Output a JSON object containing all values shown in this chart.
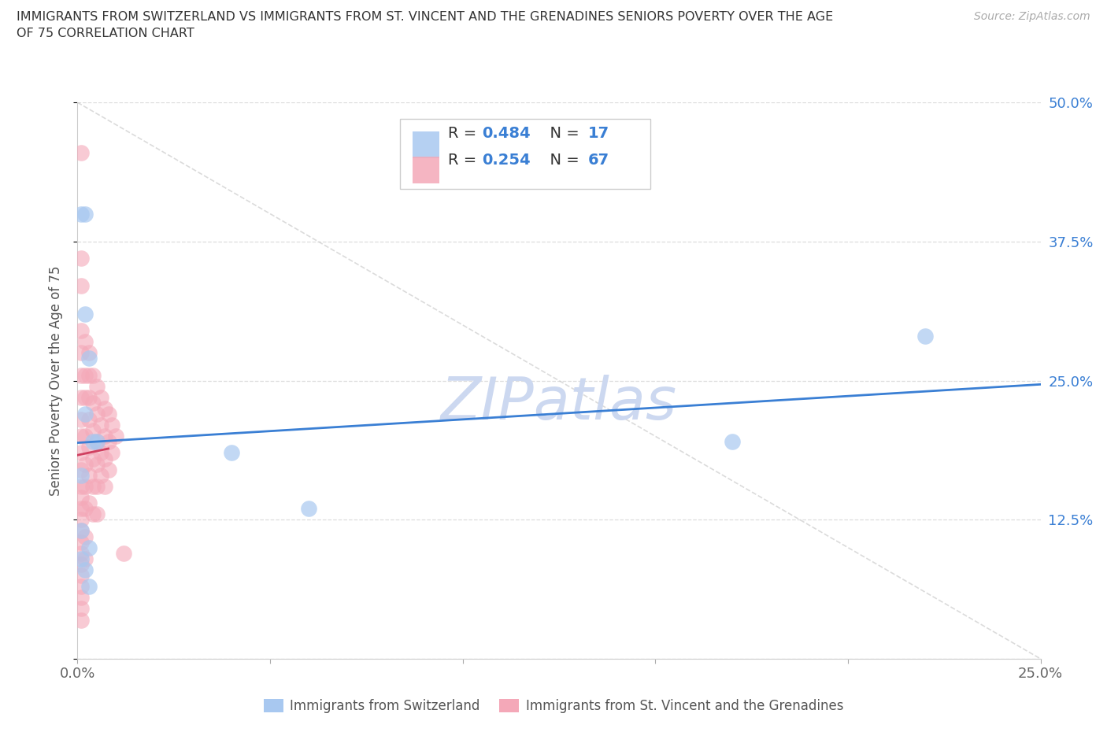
{
  "title_line1": "IMMIGRANTS FROM SWITZERLAND VS IMMIGRANTS FROM ST. VINCENT AND THE GRENADINES SENIORS POVERTY OVER THE AGE",
  "title_line2": "OF 75 CORRELATION CHART",
  "source": "Source: ZipAtlas.com",
  "ylabel": "Seniors Poverty Over the Age of 75",
  "xlim": [
    0.0,
    0.25
  ],
  "ylim": [
    0.0,
    0.5
  ],
  "xticks": [
    0.0,
    0.05,
    0.1,
    0.15,
    0.2,
    0.25
  ],
  "yticks": [
    0.0,
    0.125,
    0.25,
    0.375,
    0.5
  ],
  "xticklabels": [
    "0.0%",
    "",
    "",
    "",
    "",
    "25.0%"
  ],
  "yticklabels_right": [
    "",
    "12.5%",
    "25.0%",
    "37.5%",
    "50.0%"
  ],
  "switzerland_color": "#a8c8f0",
  "stv_color": "#f4a8b8",
  "switzerland_line_color": "#3a7fd4",
  "stv_line_color": "#d04060",
  "stv_diag_color": "#e0b0b8",
  "R_switzerland": 0.484,
  "N_switzerland": 17,
  "R_stv": 0.254,
  "N_stv": 67,
  "watermark": "ZIPatlas",
  "watermark_color": "#ccd8f0",
  "legend_label_switzerland": "Immigrants from Switzerland",
  "legend_label_stv": "Immigrants from St. Vincent and the Grenadines",
  "sw_x": [
    0.001,
    0.002,
    0.001,
    0.002,
    0.003,
    0.002,
    0.004,
    0.005,
    0.003,
    0.001,
    0.001,
    0.002,
    0.003,
    0.17,
    0.22,
    0.04,
    0.06
  ],
  "sw_y": [
    0.165,
    0.31,
    0.4,
    0.4,
    0.27,
    0.22,
    0.195,
    0.195,
    0.1,
    0.115,
    0.09,
    0.08,
    0.065,
    0.195,
    0.29,
    0.185,
    0.135
  ],
  "stv_x": [
    0.001,
    0.001,
    0.001,
    0.001,
    0.001,
    0.001,
    0.001,
    0.001,
    0.001,
    0.001,
    0.001,
    0.001,
    0.001,
    0.001,
    0.001,
    0.001,
    0.001,
    0.001,
    0.001,
    0.001,
    0.001,
    0.001,
    0.001,
    0.001,
    0.002,
    0.002,
    0.002,
    0.002,
    0.002,
    0.002,
    0.002,
    0.002,
    0.002,
    0.003,
    0.003,
    0.003,
    0.003,
    0.003,
    0.003,
    0.003,
    0.004,
    0.004,
    0.004,
    0.004,
    0.004,
    0.004,
    0.005,
    0.005,
    0.005,
    0.005,
    0.005,
    0.005,
    0.006,
    0.006,
    0.006,
    0.006,
    0.007,
    0.007,
    0.007,
    0.007,
    0.008,
    0.008,
    0.008,
    0.009,
    0.009,
    0.01,
    0.012
  ],
  "stv_y": [
    0.455,
    0.36,
    0.335,
    0.295,
    0.275,
    0.255,
    0.235,
    0.215,
    0.2,
    0.185,
    0.17,
    0.155,
    0.145,
    0.135,
    0.125,
    0.115,
    0.105,
    0.095,
    0.085,
    0.075,
    0.065,
    0.055,
    0.045,
    0.035,
    0.285,
    0.255,
    0.235,
    0.2,
    0.175,
    0.155,
    0.135,
    0.11,
    0.09,
    0.275,
    0.255,
    0.235,
    0.215,
    0.19,
    0.165,
    0.14,
    0.255,
    0.23,
    0.205,
    0.18,
    0.155,
    0.13,
    0.245,
    0.22,
    0.195,
    0.175,
    0.155,
    0.13,
    0.235,
    0.21,
    0.185,
    0.165,
    0.225,
    0.2,
    0.18,
    0.155,
    0.22,
    0.195,
    0.17,
    0.21,
    0.185,
    0.2,
    0.095
  ]
}
